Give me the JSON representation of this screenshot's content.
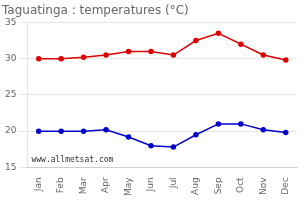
{
  "chart_data": {
    "type": "line",
    "title": "Taguatinga : temperatures (°C)",
    "annotations": [
      "www.allmetsat.com"
    ],
    "categories": [
      "Jan",
      "Feb",
      "Mar",
      "Apr",
      "May",
      "Jun",
      "Jul",
      "Aug",
      "Sep",
      "Oct",
      "Nov",
      "Dec"
    ],
    "series": [
      {
        "color": "#dd0000",
        "values": [
          30.0,
          30.0,
          30.2,
          30.5,
          31.0,
          31.0,
          30.5,
          32.5,
          33.5,
          32.0,
          30.5,
          29.8
        ]
      },
      {
        "color": "#0000cc",
        "values": [
          20.0,
          20.0,
          20.0,
          20.2,
          19.2,
          18.0,
          17.8,
          19.5,
          21.0,
          21.0,
          20.2,
          19.8
        ]
      }
    ],
    "ylim": [
      15,
      35
    ],
    "yticks": [
      15,
      20,
      25,
      30,
      35
    ],
    "grid": "y",
    "marker": "circle"
  }
}
